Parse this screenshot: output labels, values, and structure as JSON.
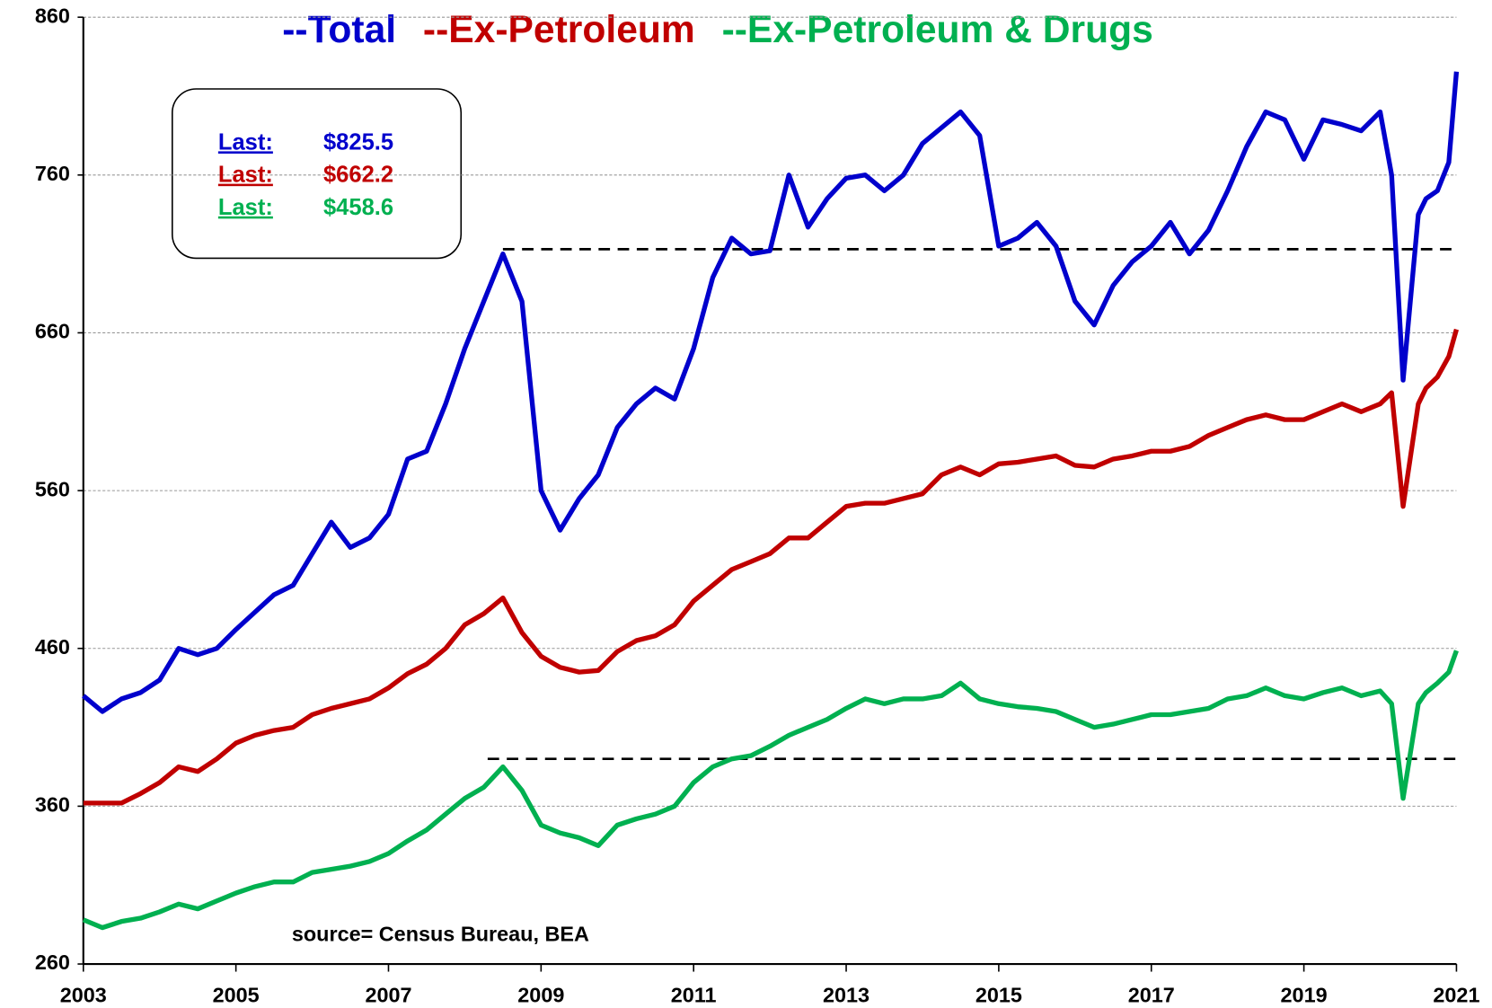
{
  "chart_data": {
    "type": "line",
    "x": [
      2003,
      2003.25,
      2003.5,
      2003.75,
      2004,
      2004.25,
      2004.5,
      2004.75,
      2005,
      2005.25,
      2005.5,
      2005.75,
      2006,
      2006.25,
      2006.5,
      2006.75,
      2007,
      2007.25,
      2007.5,
      2007.75,
      2008,
      2008.25,
      2008.5,
      2008.75,
      2009,
      2009.25,
      2009.5,
      2009.75,
      2010,
      2010.25,
      2010.5,
      2010.75,
      2011,
      2011.25,
      2011.5,
      2011.75,
      2012,
      2012.25,
      2012.5,
      2012.75,
      2013,
      2013.25,
      2013.5,
      2013.75,
      2014,
      2014.25,
      2014.5,
      2014.75,
      2015,
      2015.25,
      2015.5,
      2015.75,
      2016,
      2016.25,
      2016.5,
      2016.75,
      2017,
      2017.25,
      2017.5,
      2017.75,
      2018,
      2018.25,
      2018.5,
      2018.75,
      2019,
      2019.25,
      2019.5,
      2019.75,
      2020,
      2020.15,
      2020.3,
      2020.5,
      2020.6,
      2020.75,
      2020.9,
      2021
    ],
    "series": [
      {
        "name": "--Total",
        "color": "#0000cc",
        "values": [
          430,
          420,
          428,
          432,
          440,
          460,
          456,
          460,
          472,
          483,
          494,
          500,
          520,
          540,
          524,
          530,
          545,
          580,
          585,
          615,
          650,
          680,
          710,
          680,
          560,
          535,
          555,
          570,
          600,
          615,
          625,
          618,
          650,
          695,
          720,
          710,
          712,
          760,
          727,
          745,
          758,
          760,
          750,
          760,
          780,
          790,
          800,
          785,
          715,
          720,
          730,
          715,
          680,
          665,
          690,
          705,
          715,
          730,
          710,
          725,
          750,
          778,
          800,
          795,
          770,
          795,
          792,
          788,
          800,
          760,
          630,
          735,
          745,
          750,
          768,
          825.5
        ]
      },
      {
        "name": "--Ex-Petroleum",
        "color": "#c00000",
        "values": [
          362,
          362,
          362,
          368,
          375,
          385,
          382,
          390,
          400,
          405,
          408,
          410,
          418,
          422,
          425,
          428,
          435,
          444,
          450,
          460,
          475,
          482,
          492,
          470,
          455,
          448,
          445,
          446,
          458,
          465,
          468,
          475,
          490,
          500,
          510,
          515,
          520,
          530,
          530,
          540,
          550,
          552,
          552,
          555,
          558,
          570,
          575,
          570,
          577,
          578,
          580,
          582,
          576,
          575,
          580,
          582,
          585,
          585,
          588,
          595,
          600,
          605,
          608,
          605,
          605,
          610,
          615,
          610,
          615,
          622,
          550,
          615,
          625,
          632,
          645,
          662.2
        ]
      },
      {
        "name": "--Ex-Petroleum & Drugs",
        "color": "#00b050",
        "values": [
          288,
          283,
          287,
          289,
          293,
          298,
          295,
          300,
          305,
          309,
          312,
          312,
          318,
          320,
          322,
          325,
          330,
          338,
          345,
          355,
          365,
          372,
          385,
          370,
          348,
          343,
          340,
          335,
          348,
          352,
          355,
          360,
          375,
          385,
          390,
          392,
          398,
          405,
          410,
          415,
          422,
          428,
          425,
          428,
          428,
          430,
          438,
          428,
          425,
          423,
          422,
          420,
          415,
          410,
          412,
          415,
          418,
          418,
          420,
          422,
          428,
          430,
          435,
          430,
          428,
          432,
          435,
          430,
          433,
          425,
          365,
          425,
          432,
          438,
          445,
          458.6
        ]
      }
    ],
    "xlim": [
      2003,
      2021
    ],
    "xticks": [
      2003,
      2005,
      2007,
      2009,
      2011,
      2013,
      2015,
      2017,
      2019,
      2021
    ],
    "ylim": [
      260,
      860
    ],
    "yticks": [
      260,
      360,
      460,
      560,
      660,
      760,
      860
    ],
    "grid": true,
    "reference_lines": [
      {
        "value": 713,
        "x_start": 2008.5
      },
      {
        "value": 390,
        "x_start": 2008.3
      }
    ],
    "last_box": [
      {
        "label": "Last:",
        "value_label": "$825.5"
      },
      {
        "label": "Last:",
        "value_label": "$662.2"
      },
      {
        "label": "Last:",
        "value_label": "$458.6"
      }
    ],
    "source": "source= Census Bureau, BEA"
  }
}
